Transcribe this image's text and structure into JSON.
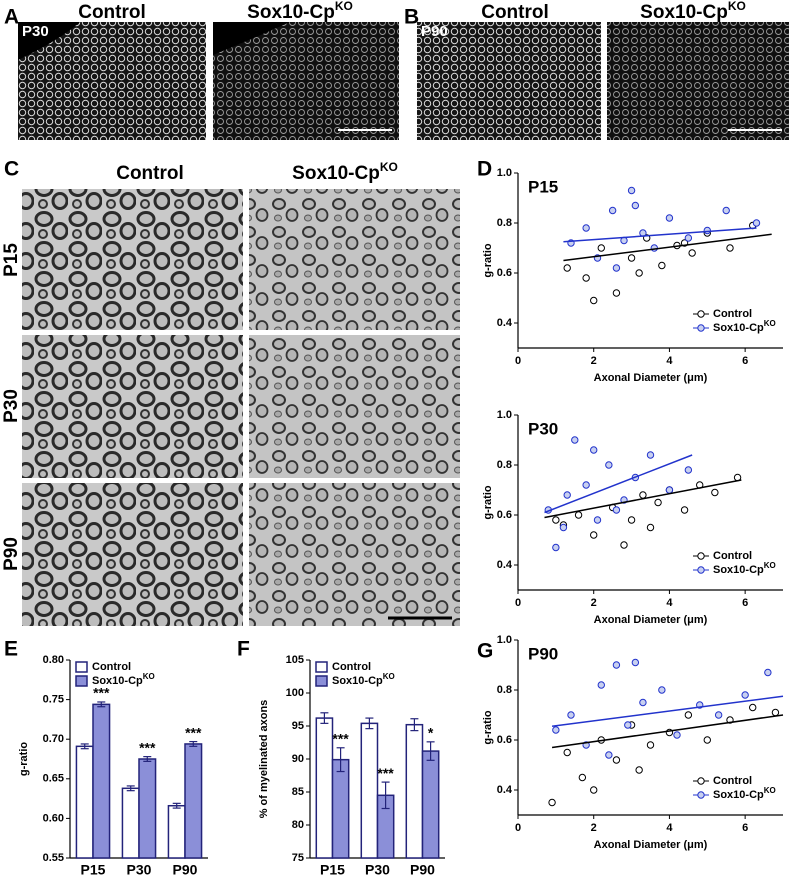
{
  "figure": {
    "panel_labels": [
      "A",
      "B",
      "C",
      "D",
      "E",
      "F",
      "G"
    ],
    "panel_a": {
      "stage": "P30",
      "columns": [
        "Control",
        "Sox10-Cp"
      ],
      "superscript": "KO"
    },
    "panel_b": {
      "stage": "P90",
      "columns": [
        "Control",
        "Sox10-Cp"
      ],
      "superscript": "KO"
    },
    "panel_c": {
      "columns": [
        "Control",
        "Sox10-Cp"
      ],
      "superscript": "KO",
      "rows": [
        "P15",
        "P30",
        "P90"
      ]
    }
  },
  "chart_data": [
    {
      "type": "scatter",
      "title": "P15",
      "x_label": "Axonal Diameter (μm)",
      "y_label": "g-ratio",
      "xlim": [
        0,
        7
      ],
      "xticks": [
        0,
        2,
        4,
        6
      ],
      "ylim": [
        0.3,
        1.0
      ],
      "yticks": [
        0.4,
        0.6,
        0.8,
        {
          "value": 1.0,
          "label": "1.0"
        }
      ],
      "legend": "lower right",
      "series": [
        {
          "name": "Control",
          "color": "#000000",
          "x": [
            1.3,
            1.8,
            2.2,
            2.6,
            3.0,
            3.4,
            3.8,
            4.2,
            4.6,
            5.0,
            5.6,
            6.2,
            2.0,
            3.2,
            4.4
          ],
          "values": [
            0.62,
            0.58,
            0.7,
            0.52,
            0.66,
            0.74,
            0.63,
            0.71,
            0.68,
            0.76,
            0.7,
            0.79,
            0.49,
            0.6,
            0.72
          ],
          "fit": {
            "x": [
              1.2,
              6.7
            ],
            "values": [
              0.65,
              0.755
            ]
          }
        },
        {
          "name": "Sox10-Cp",
          "superscript": "KO",
          "color": "#2233cc",
          "x": [
            1.4,
            1.8,
            2.1,
            2.5,
            2.8,
            3.0,
            3.3,
            3.6,
            4.0,
            4.5,
            5.0,
            5.5,
            6.3,
            2.6,
            3.1
          ],
          "values": [
            0.72,
            0.78,
            0.66,
            0.85,
            0.73,
            0.93,
            0.76,
            0.7,
            0.82,
            0.74,
            0.77,
            0.85,
            0.8,
            0.62,
            0.87
          ],
          "fit": {
            "x": [
              1.2,
              6.3
            ],
            "values": [
              0.725,
              0.78
            ]
          }
        }
      ]
    },
    {
      "type": "scatter",
      "title": "P30",
      "x_label": "Axonal Diameter (μm)",
      "y_label": "g-ratio",
      "xlim": [
        0,
        7
      ],
      "xticks": [
        0,
        2,
        4,
        6
      ],
      "ylim": [
        0.3,
        1.0
      ],
      "yticks": [
        0.4,
        0.6,
        0.8,
        {
          "value": 1.0,
          "label": "1.0"
        }
      ],
      "legend": "lower right",
      "series": [
        {
          "name": "Control",
          "color": "#000000",
          "x": [
            1.2,
            1.6,
            2.0,
            2.5,
            3.0,
            3.3,
            3.7,
            4.0,
            4.4,
            4.8,
            5.2,
            5.8,
            2.8,
            3.5,
            1.0
          ],
          "values": [
            0.56,
            0.6,
            0.52,
            0.63,
            0.58,
            0.68,
            0.65,
            0.7,
            0.62,
            0.72,
            0.69,
            0.75,
            0.48,
            0.55,
            0.58
          ],
          "fit": {
            "x": [
              0.7,
              5.9
            ],
            "values": [
              0.59,
              0.74
            ]
          }
        },
        {
          "name": "Sox10-Cp",
          "superscript": "KO",
          "color": "#2233cc",
          "x": [
            0.8,
            1.0,
            1.3,
            1.5,
            1.8,
            2.1,
            2.4,
            2.8,
            3.1,
            3.5,
            4.0,
            4.5,
            1.2,
            2.0,
            2.6
          ],
          "values": [
            0.62,
            0.47,
            0.68,
            0.9,
            0.72,
            0.58,
            0.8,
            0.66,
            0.75,
            0.84,
            0.7,
            0.78,
            0.55,
            0.86,
            0.62
          ],
          "fit": {
            "x": [
              0.7,
              4.6
            ],
            "values": [
              0.61,
              0.84
            ]
          }
        }
      ]
    },
    {
      "type": "scatter",
      "title": "P90",
      "x_label": "Axonal Diameter (μm)",
      "y_label": "g-ratio",
      "xlim": [
        0,
        7
      ],
      "xticks": [
        0,
        2,
        4,
        6
      ],
      "ylim": [
        0.3,
        1.0
      ],
      "yticks": [
        0.4,
        0.6,
        0.8,
        {
          "value": 1.0,
          "label": "1.0"
        }
      ],
      "legend": "lower right",
      "series": [
        {
          "name": "Control",
          "color": "#000000",
          "x": [
            0.9,
            1.3,
            1.7,
            2.2,
            2.6,
            3.0,
            3.5,
            4.0,
            4.5,
            5.0,
            5.6,
            6.2,
            6.8,
            2.0,
            3.2
          ],
          "values": [
            0.35,
            0.55,
            0.45,
            0.6,
            0.52,
            0.66,
            0.58,
            0.63,
            0.7,
            0.6,
            0.68,
            0.73,
            0.71,
            0.4,
            0.48
          ],
          "fit": {
            "x": [
              0.9,
              7.0
            ],
            "values": [
              0.57,
              0.7
            ]
          }
        },
        {
          "name": "Sox10-Cp",
          "superscript": "KO",
          "color": "#2233cc",
          "x": [
            1.0,
            1.4,
            1.8,
            2.2,
            2.6,
            2.9,
            3.3,
            3.8,
            4.2,
            4.8,
            5.3,
            6.0,
            6.6,
            2.4,
            3.1
          ],
          "values": [
            0.64,
            0.7,
            0.58,
            0.82,
            0.9,
            0.66,
            0.75,
            0.8,
            0.62,
            0.74,
            0.7,
            0.78,
            0.87,
            0.54,
            0.91
          ],
          "fit": {
            "x": [
              0.9,
              7.0
            ],
            "values": [
              0.655,
              0.775
            ]
          }
        }
      ]
    },
    {
      "type": "bar",
      "y_label": "g-ratio",
      "categories": [
        "P15",
        "P30",
        "P90"
      ],
      "ylim": [
        0.55,
        0.8
      ],
      "yticks": [
        0.55,
        {
          "value": 0.6,
          "label": "0.60"
        },
        0.65,
        {
          "value": 0.7,
          "label": "0.70"
        },
        0.75,
        {
          "value": 0.8,
          "label": "0.80"
        }
      ],
      "legend": "upper left",
      "series": [
        {
          "name": "Control",
          "color": "#ffffff",
          "stroke": "#23237a",
          "values": [
            0.691,
            0.638,
            0.616
          ],
          "errors": [
            0.003,
            0.003,
            0.003
          ]
        },
        {
          "name": "Sox10-Cp",
          "superscript": "KO",
          "color": "#8b8fd8",
          "stroke": "#23237a",
          "values": [
            0.744,
            0.675,
            0.694
          ],
          "errors": [
            0.003,
            0.003,
            0.003
          ],
          "annotations": [
            "***",
            "***",
            "***"
          ]
        }
      ]
    },
    {
      "type": "bar",
      "y_label": "% of myelinated axons",
      "categories": [
        "P15",
        "P30",
        "P90"
      ],
      "ylim": [
        75,
        105
      ],
      "yticks": [
        75,
        80,
        85,
        90,
        95,
        100,
        105
      ],
      "legend": "upper left",
      "series": [
        {
          "name": "Control",
          "color": "#ffffff",
          "stroke": "#23237a",
          "values": [
            96.2,
            95.4,
            95.2
          ],
          "errors": [
            0.8,
            0.8,
            0.9
          ]
        },
        {
          "name": "Sox10-Cp",
          "superscript": "KO",
          "color": "#8b8fd8",
          "stroke": "#23237a",
          "values": [
            89.9,
            84.5,
            91.2
          ],
          "errors": [
            1.8,
            2.0,
            1.4
          ],
          "annotations": [
            "***",
            "***",
            "*"
          ]
        }
      ]
    }
  ]
}
